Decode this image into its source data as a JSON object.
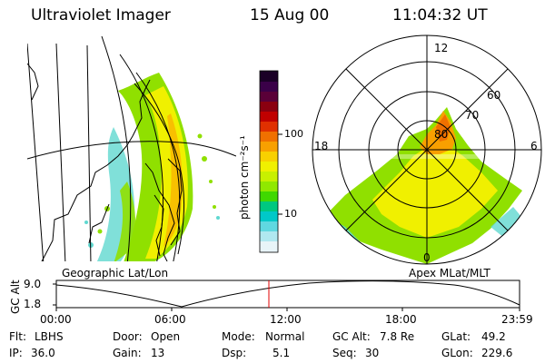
{
  "header": {
    "instrument": "Ultraviolet Imager",
    "date": "15 Aug 00",
    "time": "11:04:32 UT"
  },
  "colorbar": {
    "label": "photon cm⁻²s⁻¹",
    "ticks": [
      "100",
      "10"
    ],
    "colors": [
      "#1a0026",
      "#3a0048",
      "#5a0038",
      "#8a0010",
      "#c00000",
      "#e03000",
      "#f07000",
      "#f8a000",
      "#f8d000",
      "#f0f000",
      "#c8f000",
      "#90e800",
      "#40d800",
      "#00c880",
      "#00c8c8",
      "#60d8e0",
      "#b0e8f0",
      "#e8f4f8"
    ]
  },
  "left_panel": {
    "caption": "Geographic Lat/Lon"
  },
  "right_panel": {
    "caption": "Apex MLat/MLT",
    "mlt_labels": [
      "12",
      "18",
      "6",
      "0"
    ],
    "lat_labels": [
      "60",
      "70",
      "80"
    ]
  },
  "altitude_plot": {
    "ylabel": "GC Alt",
    "y_ticks": [
      "9.0",
      "1.8"
    ],
    "x_ticks": [
      "00:00",
      "06:00",
      "12:00",
      "18:00",
      "23:59"
    ],
    "marker_time": "11:04:32"
  },
  "info": {
    "flt_label": "Flt:",
    "flt_value": "LBHS",
    "ip_label": "IP:",
    "ip_value": "36.0",
    "door_label": "Door:",
    "door_value": "Open",
    "gain_label": "Gain:",
    "gain_value": "13",
    "mode_label": "Mode:",
    "mode_value": "Normal",
    "dsp_label": "Dsp:",
    "dsp_value": "5.1",
    "gcalt_label": "GC Alt:",
    "gcalt_value": "7.8 Re",
    "seq_label": "Seq:",
    "seq_value": "30",
    "glat_label": "GLat:",
    "glat_value": "49.2",
    "glon_label": "GLon:",
    "glon_value": "229.6"
  }
}
